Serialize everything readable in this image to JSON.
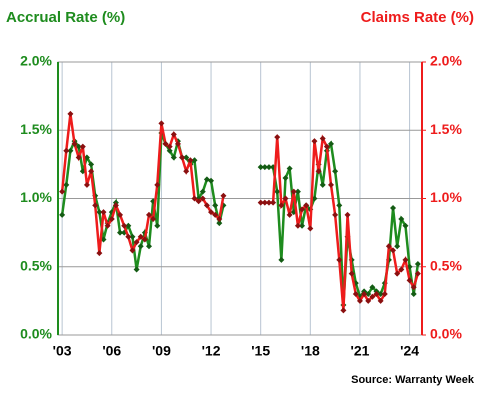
{
  "chart_data": {
    "type": "line",
    "title_left": "Accrual Rate (%)",
    "title_right": "Claims Rate (%)",
    "source": "Source: Warranty Week",
    "x": [
      2003,
      2003.25,
      2003.5,
      2003.75,
      2004,
      2004.25,
      2004.5,
      2004.75,
      2005,
      2005.25,
      2005.5,
      2005.75,
      2006,
      2006.25,
      2006.5,
      2006.75,
      2007,
      2007.25,
      2007.5,
      2007.75,
      2008,
      2008.25,
      2008.5,
      2008.75,
      2009,
      2009.25,
      2009.5,
      2009.75,
      2010,
      2010.25,
      2010.5,
      2010.75,
      2011,
      2011.25,
      2011.5,
      2011.75,
      2012,
      2012.25,
      2012.5,
      2012.75,
      2013,
      2013.25,
      2013.5,
      2013.75,
      2014,
      2014.25,
      2014.5,
      2014.75,
      2015,
      2015.25,
      2015.5,
      2015.75,
      2016,
      2016.25,
      2016.5,
      2016.75,
      2017,
      2017.25,
      2017.5,
      2017.75,
      2018,
      2018.25,
      2018.5,
      2018.75,
      2019,
      2019.25,
      2019.5,
      2019.75,
      2020,
      2020.25,
      2020.5,
      2020.75,
      2021,
      2021.25,
      2021.5,
      2021.75,
      2022,
      2022.25,
      2022.5,
      2022.75,
      2023,
      2023.25,
      2023.5,
      2023.75,
      2024,
      2024.25,
      2024.5
    ],
    "series": [
      {
        "name": "Accrual Rate (%)",
        "color": "#1e8c1e",
        "axis": "y",
        "values": [
          0.88,
          1.1,
          1.35,
          1.42,
          1.38,
          1.2,
          1.3,
          1.25,
          1.02,
          0.9,
          0.7,
          0.82,
          0.9,
          0.97,
          0.75,
          0.75,
          0.8,
          0.72,
          0.48,
          0.65,
          0.75,
          0.65,
          0.98,
          0.8,
          1.48,
          1.4,
          1.35,
          1.3,
          1.42,
          1.3,
          1.3,
          1.25,
          1.28,
          1.0,
          1.05,
          1.14,
          1.13,
          0.95,
          0.82,
          0.95,
          null,
          null,
          null,
          null,
          null,
          null,
          null,
          null,
          1.23,
          1.23,
          1.23,
          1.23,
          1.05,
          0.55,
          1.15,
          1.22,
          0.9,
          1.05,
          0.8,
          0.95,
          0.92,
          1.0,
          1.25,
          1.1,
          1.35,
          1.4,
          1.2,
          0.95,
          0.22,
          0.72,
          0.55,
          0.38,
          0.28,
          0.32,
          0.3,
          0.35,
          0.32,
          0.3,
          0.38,
          0.55,
          0.93,
          0.65,
          0.85,
          0.8,
          0.5,
          0.3,
          0.52
        ]
      },
      {
        "name": "Claims Rate (%)",
        "color": "#ee1c1c",
        "axis": "y2",
        "values": [
          1.05,
          1.35,
          1.62,
          1.4,
          1.3,
          1.38,
          1.1,
          1.2,
          0.95,
          0.6,
          0.9,
          0.8,
          0.85,
          0.95,
          0.88,
          0.8,
          0.72,
          0.62,
          0.68,
          0.72,
          0.7,
          0.88,
          0.85,
          1.1,
          1.55,
          1.4,
          1.38,
          1.47,
          1.4,
          1.3,
          1.2,
          1.28,
          1.0,
          0.98,
          1.0,
          0.95,
          0.9,
          0.88,
          0.85,
          1.02,
          null,
          null,
          null,
          null,
          null,
          null,
          null,
          null,
          0.97,
          0.97,
          0.97,
          0.97,
          1.45,
          0.95,
          1.0,
          0.88,
          1.05,
          0.8,
          0.92,
          0.95,
          0.78,
          1.42,
          1.2,
          1.44,
          1.38,
          1.1,
          0.88,
          0.55,
          0.18,
          0.88,
          0.45,
          0.3,
          0.25,
          0.3,
          0.25,
          0.28,
          0.3,
          0.25,
          0.3,
          0.65,
          0.62,
          0.45,
          0.48,
          0.55,
          0.4,
          0.35,
          0.45
        ]
      }
    ],
    "xlim": [
      2002.75,
      2024.75
    ],
    "xticks": [
      {
        "value": 2003,
        "label": "'03"
      },
      {
        "value": 2006,
        "label": "'06"
      },
      {
        "value": 2009,
        "label": "'09"
      },
      {
        "value": 2012,
        "label": "'12"
      },
      {
        "value": 2015,
        "label": "'15"
      },
      {
        "value": 2018,
        "label": "'18"
      },
      {
        "value": 2021,
        "label": "'21"
      },
      {
        "value": 2024,
        "label": "'24"
      }
    ],
    "ylim": [
      0,
      2
    ],
    "yticks": [
      {
        "value": 0,
        "label": "0.0%"
      },
      {
        "value": 0.5,
        "label": "0.5%"
      },
      {
        "value": 1,
        "label": "1.0%"
      },
      {
        "value": 1.5,
        "label": "1.5%"
      },
      {
        "value": 2,
        "label": "2.0%"
      }
    ],
    "y2lim": [
      0,
      2
    ],
    "y2ticks": [
      {
        "value": 0,
        "label": "0.0%"
      },
      {
        "value": 0.5,
        "label": "0.5%"
      },
      {
        "value": 1,
        "label": "1.0%"
      },
      {
        "value": 1.5,
        "label": "1.5%"
      },
      {
        "value": 2,
        "label": "2.0%"
      }
    ],
    "grid": true
  }
}
